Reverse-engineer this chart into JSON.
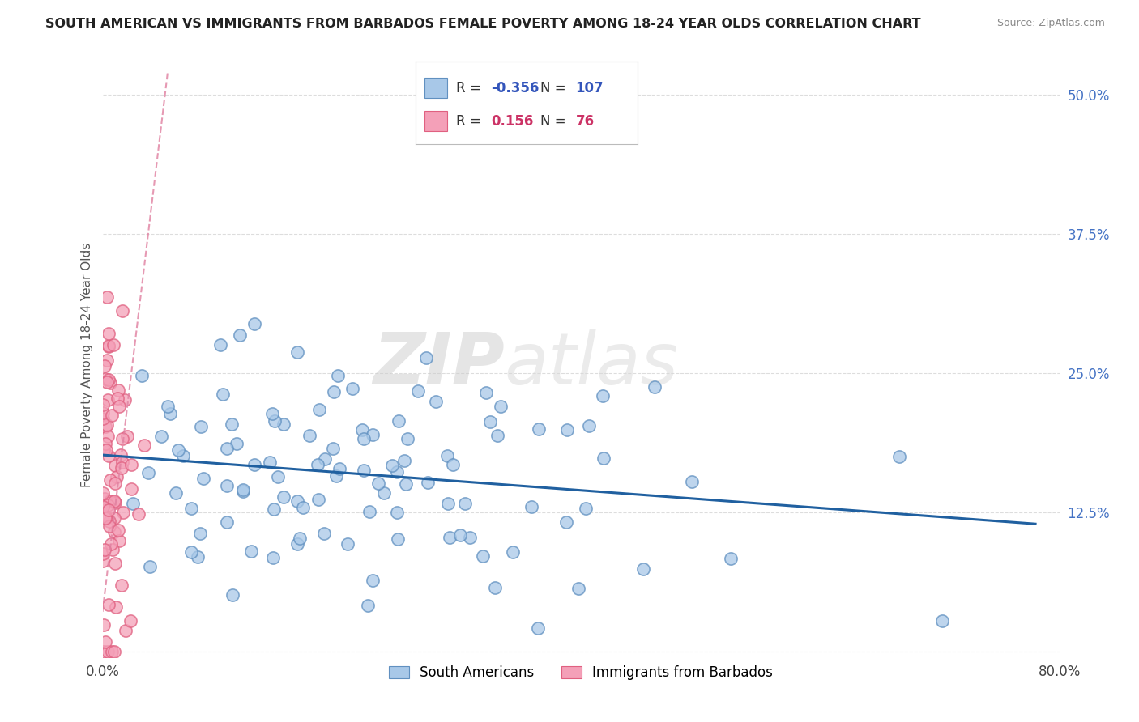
{
  "title": "SOUTH AMERICAN VS IMMIGRANTS FROM BARBADOS FEMALE POVERTY AMONG 18-24 YEAR OLDS CORRELATION CHART",
  "source": "Source: ZipAtlas.com",
  "ylabel": "Female Poverty Among 18-24 Year Olds",
  "xlim": [
    0.0,
    0.8
  ],
  "ylim": [
    -0.005,
    0.52
  ],
  "xticks": [
    0.0,
    0.8
  ],
  "xticklabels": [
    "0.0%",
    "80.0%"
  ],
  "yticks": [
    0.0,
    0.125,
    0.25,
    0.375,
    0.5
  ],
  "yticklabels": [
    "",
    "12.5%",
    "25.0%",
    "37.5%",
    "50.0%"
  ],
  "blue_color": "#a8c8e8",
  "pink_color": "#f4a0b8",
  "blue_edge_color": "#6090c0",
  "pink_edge_color": "#e06080",
  "blue_line_color": "#2060a0",
  "pink_line_color": "#e080a0",
  "legend_blue_R": "-0.356",
  "legend_blue_N": "107",
  "legend_pink_R": "0.156",
  "legend_pink_N": "76",
  "legend_label_blue": "South Americans",
  "legend_label_pink": "Immigrants from Barbados",
  "watermark_zip": "ZIP",
  "watermark_atlas": "atlas",
  "blue_R": -0.356,
  "blue_N": 107,
  "pink_R": 0.156,
  "pink_N": 76,
  "blue_seed": 42,
  "pink_seed": 7,
  "background_color": "#ffffff",
  "grid_color": "#dddddd",
  "ytick_color": "#4472c4"
}
